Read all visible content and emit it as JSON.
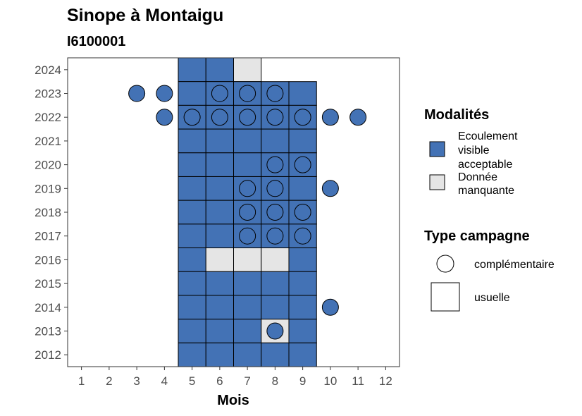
{
  "chart_data": {
    "type": "heatmap",
    "title": "Sinope à Montaigu",
    "subtitle": "I6100001",
    "xlabel": "Mois",
    "ylabel": "",
    "x_ticks": [
      1,
      2,
      3,
      4,
      5,
      6,
      7,
      8,
      9,
      10,
      11,
      12
    ],
    "y_ticks": [
      2012,
      2013,
      2014,
      2015,
      2016,
      2017,
      2018,
      2019,
      2020,
      2021,
      2022,
      2023,
      2024
    ],
    "xlim": [
      0.5,
      12.5
    ],
    "ylim": [
      2011.5,
      2024.5
    ],
    "grid": false,
    "colors": {
      "Ecoulement visible acceptable": "#4372b5",
      "Donnée manquante": "#e5e5e5"
    },
    "legend": {
      "placement": "right",
      "modalites": {
        "title": "Modalités",
        "items": [
          {
            "label_lines": [
              "Ecoulement",
              "visible",
              "acceptable"
            ],
            "category": "Ecoulement visible acceptable"
          },
          {
            "label_lines": [
              "Donnée",
              "manquante"
            ],
            "category": "Donnée manquante"
          }
        ]
      },
      "type_campagne": {
        "title": "Type campagne",
        "items": [
          {
            "label": "complémentaire",
            "shape": "circle"
          },
          {
            "label": "usuelle",
            "shape": "square"
          }
        ]
      }
    },
    "series": [
      {
        "campaign": "usuelle",
        "shape": "square",
        "points": [
          {
            "year": 2024,
            "months": [
              5,
              6
            ],
            "category": "Ecoulement visible acceptable"
          },
          {
            "year": 2024,
            "months": [
              7
            ],
            "category": "Donnée manquante"
          },
          {
            "year": 2023,
            "months": [
              5,
              6,
              7,
              8,
              9
            ],
            "category": "Ecoulement visible acceptable"
          },
          {
            "year": 2022,
            "months": [
              5,
              6,
              7,
              8,
              9
            ],
            "category": "Ecoulement visible acceptable"
          },
          {
            "year": 2021,
            "months": [
              5,
              6,
              7,
              8,
              9
            ],
            "category": "Ecoulement visible acceptable"
          },
          {
            "year": 2020,
            "months": [
              5,
              6,
              7,
              8,
              9
            ],
            "category": "Ecoulement visible acceptable"
          },
          {
            "year": 2019,
            "months": [
              5,
              6,
              7,
              8,
              9
            ],
            "category": "Ecoulement visible acceptable"
          },
          {
            "year": 2018,
            "months": [
              5,
              6,
              7,
              8,
              9
            ],
            "category": "Ecoulement visible acceptable"
          },
          {
            "year": 2017,
            "months": [
              5,
              6,
              7,
              8,
              9
            ],
            "category": "Ecoulement visible acceptable"
          },
          {
            "year": 2016,
            "months": [
              5,
              9
            ],
            "category": "Ecoulement visible acceptable"
          },
          {
            "year": 2016,
            "months": [
              6,
              7,
              8
            ],
            "category": "Donnée manquante"
          },
          {
            "year": 2015,
            "months": [
              5,
              6,
              7,
              8,
              9
            ],
            "category": "Ecoulement visible acceptable"
          },
          {
            "year": 2014,
            "months": [
              5,
              6,
              7,
              8,
              9
            ],
            "category": "Ecoulement visible acceptable"
          },
          {
            "year": 2013,
            "months": [
              5,
              6,
              7,
              9
            ],
            "category": "Ecoulement visible acceptable"
          },
          {
            "year": 2013,
            "months": [
              8
            ],
            "category": "Donnée manquante"
          },
          {
            "year": 2012,
            "months": [
              5,
              6,
              7,
              8,
              9
            ],
            "category": "Ecoulement visible acceptable"
          }
        ]
      },
      {
        "campaign": "complémentaire",
        "shape": "circle",
        "points": [
          {
            "year": 2023,
            "months": [
              3,
              4,
              6,
              7,
              8
            ],
            "category": "Ecoulement visible acceptable"
          },
          {
            "year": 2022,
            "months": [
              4,
              5,
              6,
              7,
              8,
              9,
              10,
              11
            ],
            "category": "Ecoulement visible acceptable"
          },
          {
            "year": 2020,
            "months": [
              8,
              9
            ],
            "category": "Ecoulement visible acceptable"
          },
          {
            "year": 2019,
            "months": [
              7,
              8,
              10
            ],
            "category": "Ecoulement visible acceptable"
          },
          {
            "year": 2018,
            "months": [
              7,
              8,
              9
            ],
            "category": "Ecoulement visible acceptable"
          },
          {
            "year": 2017,
            "months": [
              7,
              8,
              9
            ],
            "category": "Ecoulement visible acceptable"
          },
          {
            "year": 2014,
            "months": [
              10
            ],
            "category": "Ecoulement visible acceptable"
          },
          {
            "year": 2013,
            "months": [
              8
            ],
            "category": "Ecoulement visible acceptable"
          }
        ]
      }
    ]
  }
}
